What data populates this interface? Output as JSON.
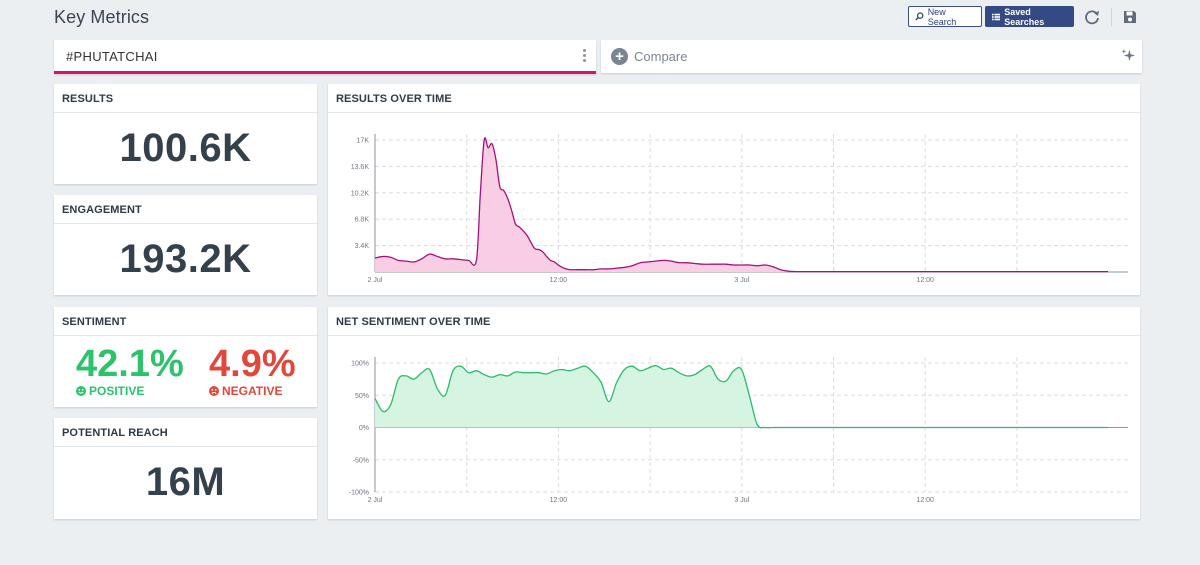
{
  "header": {
    "title": "Key Metrics",
    "new_search_label": "New Search",
    "saved_searches_label": "Saved Searches"
  },
  "search": {
    "query": "#PHUTATCHAI",
    "compare_label": "Compare"
  },
  "metrics": {
    "results": {
      "label": "RESULTS",
      "value": "100.6K"
    },
    "engagement": {
      "label": "ENGAGEMENT",
      "value": "193.2K"
    },
    "sentiment": {
      "label": "SENTIMENT",
      "positive_value": "42.1%",
      "positive_label": "POSITIVE",
      "negative_value": "4.9%",
      "negative_label": "NEGATIVE"
    },
    "reach": {
      "label": "POTENTIAL REACH",
      "value": "16M"
    }
  },
  "colors": {
    "accent": "#d6126a",
    "results_line": "#a3127b",
    "results_fill": "#f9cde4",
    "sentiment_line": "#2bbd6a",
    "sentiment_fill": "#d5f4e2",
    "positive": "#2cc36b",
    "negative": "#e0483c",
    "primary_button": "#344a85"
  },
  "icons": {
    "new_search": "search-icon",
    "saved_searches": "list-icon",
    "refresh": "refresh-icon",
    "save": "floppy-disk-icon",
    "menu": "kebab-menu-icon",
    "compare": "plus-circle-icon",
    "ai": "sparkle-icon"
  },
  "chart_data": [
    {
      "type": "area",
      "title": "RESULTS OVER TIME",
      "x_tick_labels": [
        "2 Jul",
        "12:00",
        "3 Jul",
        "12:00"
      ],
      "y_tick_labels": [
        "3.4K",
        "6.8K",
        "10.2K",
        "13.6K",
        "17K"
      ],
      "ylim": [
        0,
        17000
      ],
      "grid": true,
      "x_hours": [
        0,
        2,
        4,
        6,
        8,
        10,
        12,
        14,
        16,
        18,
        20,
        22,
        24,
        26,
        27,
        28,
        29,
        30,
        31,
        32,
        33,
        34,
        35,
        36,
        37,
        38,
        39,
        40,
        41,
        42,
        43,
        44,
        45,
        46,
        47,
        48,
        49,
        50,
        52,
        54,
        56,
        58,
        60,
        62,
        64,
        66,
        68,
        70,
        72,
        74,
        76,
        78,
        80,
        82,
        84,
        86,
        88,
        90,
        92,
        94,
        96,
        98,
        100,
        102,
        104,
        106,
        108,
        110,
        112,
        114,
        116,
        118,
        120,
        122,
        124,
        126,
        128,
        130,
        132,
        134,
        136,
        138,
        140,
        142,
        144,
        148,
        152,
        156,
        160,
        164,
        168,
        172,
        176,
        180,
        184,
        188
      ],
      "series": [
        {
          "values": [
            1800,
            2000,
            1900,
            1500,
            1400,
            1300,
            1700,
            2300,
            2000,
            1700,
            1700,
            1600,
            1500,
            1500,
            10000,
            17000,
            16000,
            16500,
            14500,
            11000,
            10500,
            9500,
            8000,
            6200,
            5800,
            5300,
            4700,
            3800,
            3000,
            2900,
            2600,
            2000,
            1500,
            1300,
            900,
            600,
            400,
            300,
            300,
            300,
            300,
            400,
            400,
            500,
            600,
            800,
            1200,
            1300,
            1400,
            1500,
            1400,
            1200,
            1200,
            1100,
            1000,
            1000,
            1000,
            1000,
            900,
            900,
            900,
            800,
            900,
            700,
            300,
            100,
            50,
            50,
            50,
            50,
            50,
            50,
            50,
            50,
            50,
            50,
            50,
            50,
            50,
            50,
            50,
            50,
            50,
            50,
            50,
            50,
            50,
            50,
            50,
            50,
            50,
            50,
            50,
            50,
            50,
            50
          ]
        }
      ]
    },
    {
      "type": "area",
      "title": "NET SENTIMENT OVER TIME",
      "x_tick_labels": [
        "2 Jul",
        "12:00",
        "3 Jul",
        "12:00"
      ],
      "y_tick_labels": [
        "100%",
        "50%",
        "0%",
        "-50%",
        "-100%"
      ],
      "ylim": [
        -100,
        100
      ],
      "grid": true,
      "x_hours": [
        0,
        2,
        4,
        6,
        8,
        10,
        12,
        14,
        16,
        18,
        20,
        22,
        24,
        26,
        28,
        30,
        32,
        34,
        36,
        38,
        40,
        42,
        44,
        46,
        48,
        50,
        52,
        54,
        56,
        58,
        60,
        62,
        64,
        66,
        68,
        70,
        72,
        74,
        76,
        78,
        80,
        82,
        84,
        86,
        88,
        90,
        92,
        94,
        96,
        98,
        100,
        102,
        104,
        106,
        108,
        110,
        112,
        114,
        116,
        118,
        120,
        122,
        124,
        126,
        128,
        130,
        132,
        134,
        136,
        138,
        140,
        142,
        144,
        148,
        152,
        156,
        160,
        164,
        168,
        172,
        176,
        180,
        184,
        188
      ],
      "series": [
        {
          "values": [
            45,
            25,
            35,
            75,
            80,
            75,
            85,
            90,
            60,
            50,
            88,
            95,
            85,
            88,
            82,
            78,
            82,
            80,
            86,
            85,
            85,
            85,
            83,
            88,
            90,
            88,
            92,
            95,
            85,
            70,
            40,
            70,
            90,
            95,
            88,
            92,
            96,
            90,
            92,
            85,
            80,
            82,
            90,
            95,
            75,
            72,
            88,
            90,
            50,
            5,
            0,
            0,
            0,
            0,
            0,
            0,
            0,
            0,
            0,
            0,
            0,
            0,
            0,
            0,
            0,
            0,
            0,
            0,
            0,
            0,
            0,
            0,
            0,
            0,
            0,
            0,
            0,
            0,
            0,
            0,
            0,
            0,
            0,
            0
          ]
        }
      ]
    }
  ]
}
